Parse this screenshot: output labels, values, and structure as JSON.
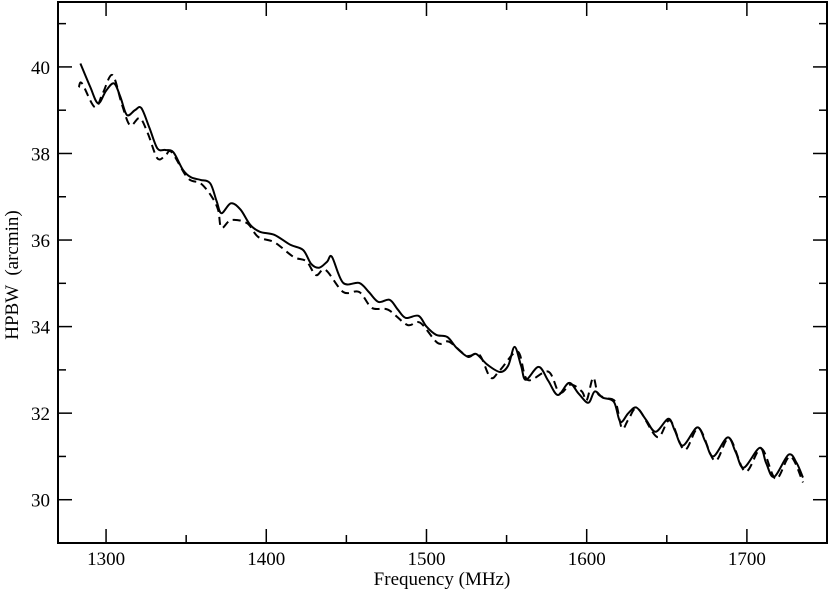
{
  "chart_data": {
    "type": "line",
    "title": "",
    "xlabel": "Frequency  (MHz)",
    "ylabel": "HPBW  (arcmin)",
    "xlim": [
      1270,
      1750
    ],
    "ylim": [
      29,
      41.5
    ],
    "xticks": [
      1300,
      1400,
      1500,
      1600,
      1700
    ],
    "xtick_labels": [
      "1300",
      "1400",
      "1500",
      "1600",
      "1700"
    ],
    "xminor": [
      1350,
      1450,
      1550,
      1650
    ],
    "yticks": [
      30,
      32,
      34,
      36,
      38,
      40
    ],
    "ytick_labels": [
      "30",
      "32",
      "34",
      "36",
      "38",
      "40"
    ],
    "yminor": [
      29,
      31,
      33,
      35,
      37,
      39,
      41
    ],
    "grid": false,
    "series": [
      {
        "name": "solid",
        "style": "solid",
        "color": "#000000",
        "x": [
          1284,
          1290,
          1295,
          1300,
          1305,
          1309,
          1313,
          1318,
          1322,
          1327,
          1332,
          1337,
          1342,
          1348,
          1353,
          1359,
          1365,
          1369,
          1372,
          1378,
          1384,
          1390,
          1396,
          1405,
          1415,
          1423,
          1428,
          1433,
          1438,
          1441,
          1448,
          1458,
          1464,
          1470,
          1477,
          1482,
          1487,
          1495,
          1500,
          1506,
          1513,
          1519,
          1526,
          1531,
          1538,
          1546,
          1551,
          1555,
          1559,
          1562,
          1570,
          1576,
          1582,
          1589,
          1595,
          1601,
          1605,
          1610,
          1617,
          1621,
          1626,
          1631,
          1637,
          1643,
          1651,
          1655,
          1660,
          1669,
          1674,
          1679,
          1688,
          1693,
          1698,
          1708,
          1712,
          1717,
          1726,
          1731,
          1735
        ],
        "y": [
          40.08,
          39.55,
          39.16,
          39.45,
          39.62,
          39.3,
          38.89,
          39.0,
          39.05,
          38.6,
          38.12,
          38.08,
          38.03,
          37.62,
          37.45,
          37.39,
          37.31,
          36.9,
          36.62,
          36.85,
          36.7,
          36.35,
          36.19,
          36.12,
          35.89,
          35.77,
          35.45,
          35.36,
          35.5,
          35.61,
          35.01,
          35.01,
          34.8,
          34.57,
          34.62,
          34.4,
          34.2,
          34.25,
          34.0,
          33.81,
          33.76,
          33.5,
          33.3,
          33.37,
          33.12,
          32.95,
          33.1,
          33.53,
          33.1,
          32.77,
          33.07,
          32.75,
          32.42,
          32.7,
          32.45,
          32.24,
          32.5,
          32.36,
          32.26,
          31.8,
          32.0,
          32.13,
          31.85,
          31.57,
          31.87,
          31.6,
          31.25,
          31.67,
          31.35,
          31.0,
          31.44,
          31.1,
          30.74,
          31.2,
          30.85,
          30.53,
          31.04,
          30.85,
          30.51
        ]
      },
      {
        "name": "dashed",
        "style": "dashed",
        "color": "#000000",
        "x": [
          1283,
          1285,
          1293,
          1298,
          1304,
          1310,
          1315,
          1321,
          1326,
          1332,
          1337,
          1341,
          1351,
          1359,
          1366,
          1370,
          1372,
          1378,
          1388,
          1395,
          1405,
          1417,
          1425,
          1431,
          1437,
          1448,
          1458,
          1466,
          1476,
          1488,
          1496,
          1507,
          1514,
          1525,
          1533,
          1540,
          1546,
          1557,
          1563,
          1576,
          1583,
          1590,
          1597,
          1600,
          1604,
          1607,
          1612,
          1618,
          1622,
          1626,
          1632,
          1644,
          1652,
          1661,
          1670,
          1680,
          1689,
          1699,
          1709,
          1718,
          1727,
          1735
        ],
        "y": [
          39.53,
          39.62,
          39.07,
          39.4,
          39.81,
          39.12,
          38.65,
          38.82,
          38.47,
          37.89,
          37.95,
          38.03,
          37.43,
          37.31,
          37.0,
          36.69,
          36.28,
          36.46,
          36.39,
          36.07,
          35.95,
          35.61,
          35.51,
          35.19,
          35.31,
          34.8,
          34.8,
          34.43,
          34.39,
          34.04,
          34.09,
          33.62,
          33.65,
          33.33,
          33.35,
          32.82,
          33.0,
          33.42,
          32.77,
          32.96,
          32.47,
          32.66,
          32.5,
          32.3,
          32.82,
          32.45,
          32.35,
          32.25,
          31.65,
          31.85,
          32.1,
          31.45,
          31.83,
          31.15,
          31.65,
          30.9,
          31.42,
          30.65,
          31.18,
          30.48,
          31.0,
          30.4
        ]
      }
    ]
  }
}
